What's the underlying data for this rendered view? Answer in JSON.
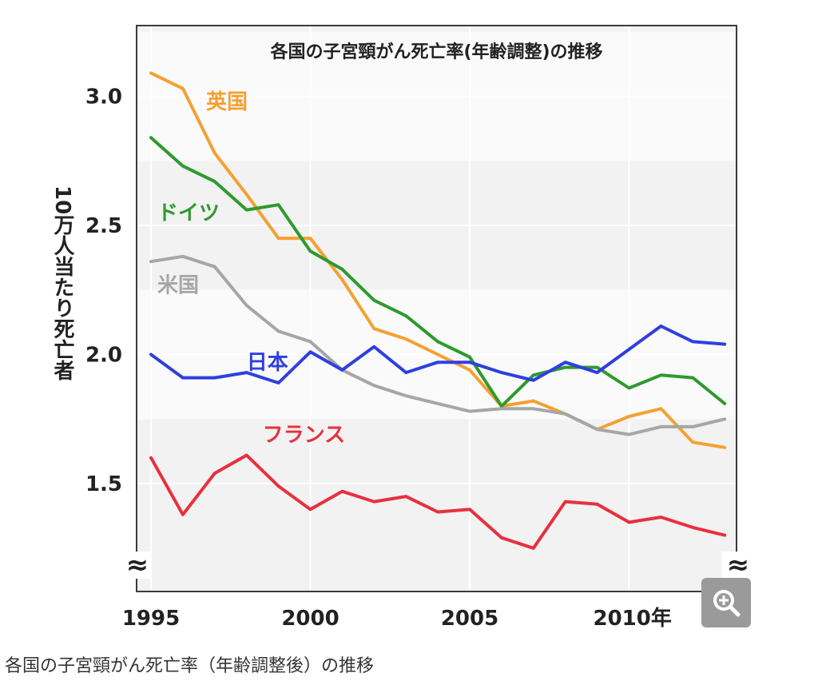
{
  "chart_data": {
    "type": "line",
    "title": "各国の子宮頸がん死亡率(年齢調整)の推移",
    "ylabel": "10万人当たり死亡者",
    "xlabel": "",
    "x": [
      1995,
      1996,
      1997,
      1998,
      1999,
      2000,
      2001,
      2002,
      2003,
      2004,
      2005,
      2006,
      2007,
      2008,
      2009,
      2010,
      2011,
      2012,
      2013
    ],
    "xlim": [
      1995,
      2013.7
    ],
    "ylim": [
      1.1,
      3.25
    ],
    "x_ticks": [
      {
        "value": 1995,
        "label": "1995"
      },
      {
        "value": 2000,
        "label": "2000"
      },
      {
        "value": 2005,
        "label": "2005"
      },
      {
        "value": 2010,
        "label": "2010年"
      }
    ],
    "y_ticks": [
      {
        "value": 3.0,
        "label": "3.0"
      },
      {
        "value": 2.5,
        "label": "2.5"
      },
      {
        "value": 2.0,
        "label": "2.0"
      },
      {
        "value": 1.5,
        "label": "1.5"
      }
    ],
    "axis_break_symbol": "≈",
    "grid": true,
    "series": [
      {
        "name": "英国",
        "color": "#f5a033",
        "values": [
          3.09,
          3.03,
          2.78,
          2.62,
          2.45,
          2.45,
          2.29,
          2.1,
          2.06,
          2.0,
          1.94,
          1.8,
          1.82,
          1.77,
          1.71,
          1.76,
          1.79,
          1.66,
          1.64
        ],
        "label_at": [
          2.28,
          2.98
        ]
      },
      {
        "name": "ドイツ",
        "color": "#2e9a2e",
        "values": [
          2.84,
          2.73,
          2.67,
          2.56,
          2.58,
          2.4,
          2.33,
          2.21,
          2.15,
          2.05,
          1.99,
          1.8,
          1.92,
          1.95,
          1.95,
          1.87,
          1.92,
          1.91,
          1.81
        ],
        "label_at": [
          1995.2,
          2.55
        ]
      },
      {
        "name": "米国",
        "color": "#a6a6a6",
        "values": [
          2.36,
          2.38,
          2.34,
          2.19,
          2.09,
          2.05,
          1.94,
          1.88,
          1.84,
          1.81,
          1.78,
          1.79,
          1.79,
          1.77,
          1.71,
          1.69,
          1.72,
          1.72,
          1.75
        ],
        "label_at": [
          1995.2,
          2.27
        ]
      },
      {
        "name": "日本",
        "color": "#2f3fe0",
        "values": [
          2.0,
          1.91,
          1.91,
          1.93,
          1.89,
          2.01,
          1.94,
          2.03,
          1.93,
          1.97,
          1.97,
          1.93,
          1.9,
          1.97,
          1.93,
          2.02,
          2.11,
          2.05,
          2.04
        ],
        "label_at": [
          1998.0,
          1.97
        ]
      },
      {
        "name": "フランス",
        "color": "#e8303c",
        "values": [
          1.6,
          1.38,
          1.54,
          1.61,
          1.49,
          1.4,
          1.47,
          1.43,
          1.45,
          1.39,
          1.4,
          1.29,
          1.25,
          1.43,
          1.42,
          1.35,
          1.37,
          1.33,
          1.3
        ],
        "label_at": [
          1998.5,
          1.69
        ]
      }
    ]
  },
  "caption": "各国の子宮頸がん死亡率（年齢調整後）の推移",
  "zoom_icon": "zoom-in-icon"
}
